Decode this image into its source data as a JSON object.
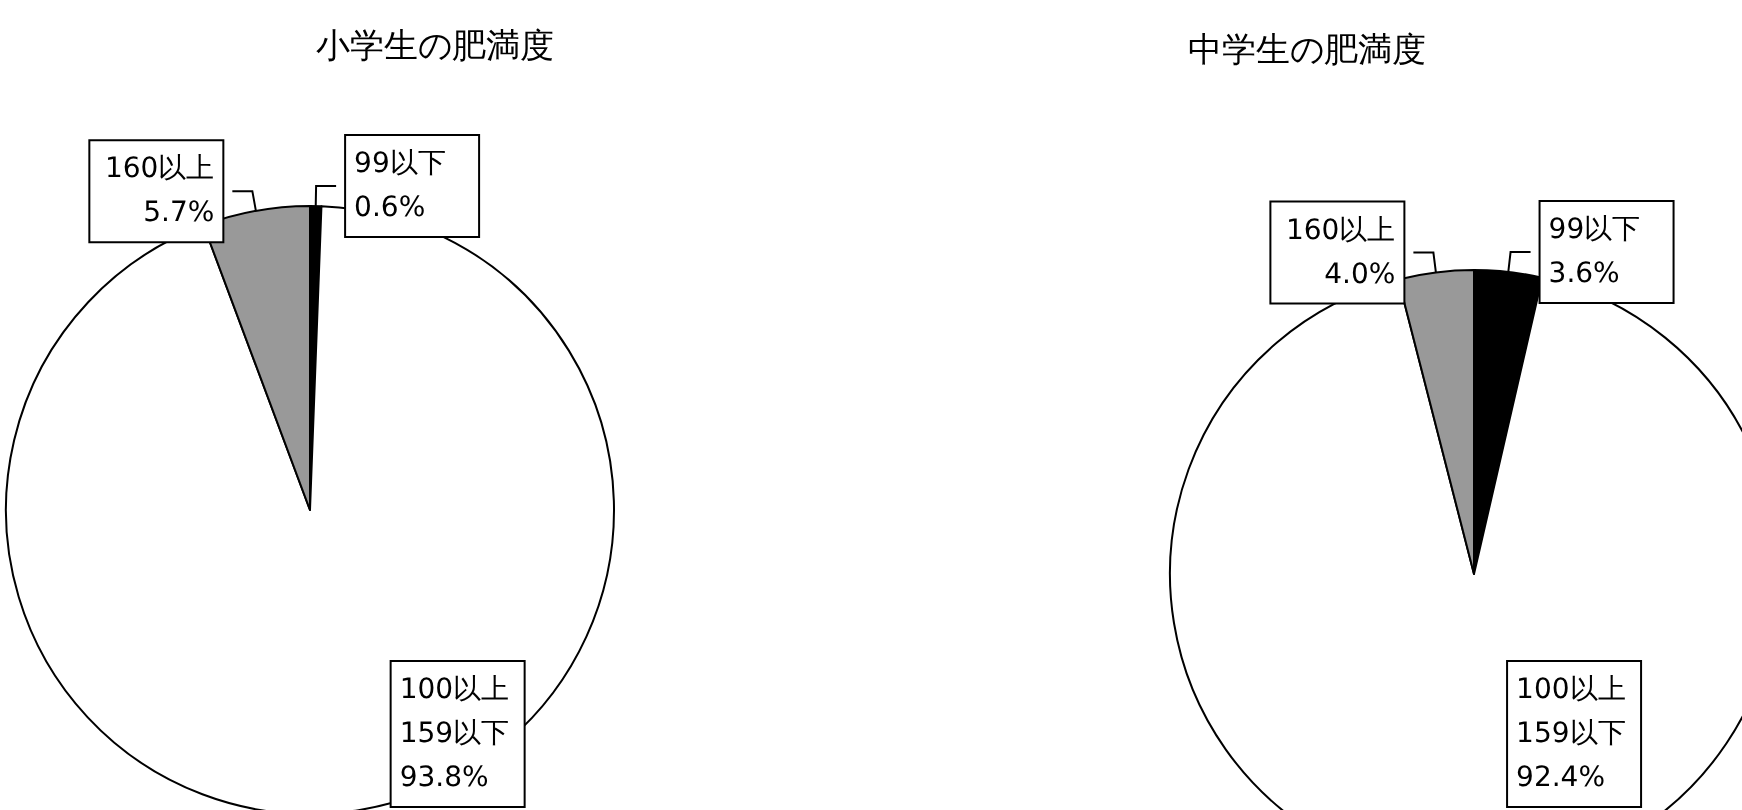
{
  "chart_data": [
    {
      "type": "pie",
      "title": "小学生の肥満度",
      "categories": [
        "99以下",
        "100以上159以下",
        "160以上"
      ],
      "values": [
        0.6,
        93.8,
        5.7
      ],
      "value_labels": [
        "0.6%",
        "93.8%",
        "5.7%"
      ],
      "colors": [
        "#000000",
        "#ffffff",
        "#999999"
      ],
      "legend": false
    },
    {
      "type": "pie",
      "title": "中学生の肥満度",
      "categories": [
        "99以下",
        "100以上159以下",
        "160以上"
      ],
      "values": [
        3.6,
        92.4,
        4.0
      ],
      "value_labels": [
        "3.6%",
        "92.4%",
        "4.0%"
      ],
      "colors": [
        "#000000",
        "#ffffff",
        "#999999"
      ],
      "legend": false
    }
  ]
}
